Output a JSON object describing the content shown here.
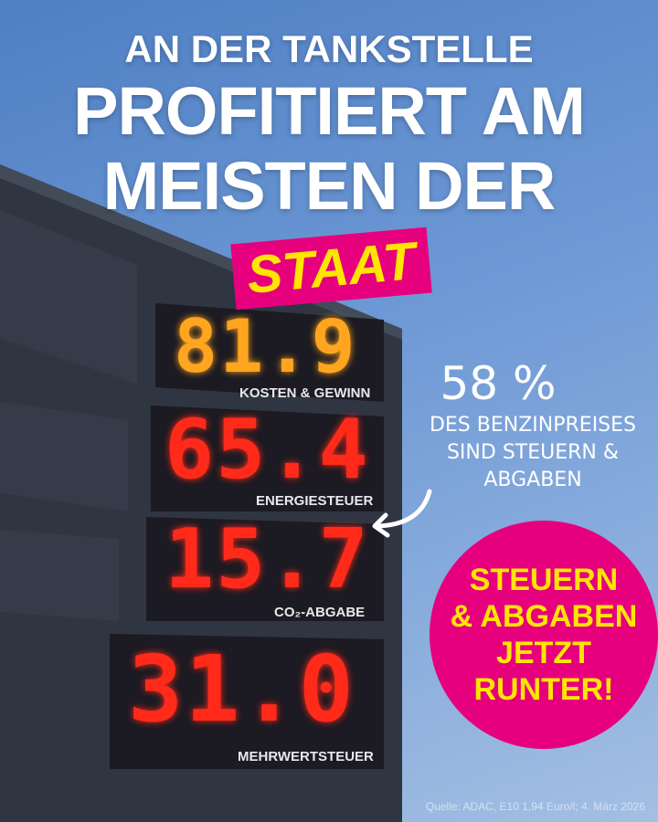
{
  "headline": {
    "line1": "AN DER TANKSTELLE",
    "line2": "PROFITIERT AM",
    "line3": "MEISTEN DER",
    "highlight": "STAAT"
  },
  "sign": [
    {
      "value": "81.9",
      "label": "KOSTEN & GEWINN",
      "color": "#ffa51f"
    },
    {
      "value": "65.4",
      "label": "ENERGIESTEUER",
      "color": "#ff2a1a"
    },
    {
      "value": "15.7",
      "label": "CO₂-ABGABE",
      "color": "#ff2a1a"
    },
    {
      "value": "31.0",
      "label": "MEHRWERTSTEUER",
      "color": "#ff2a1a"
    }
  ],
  "callout": {
    "percent": "58 %",
    "line1": "DES BENZINPREISES",
    "line2": "SIND STEUERN &",
    "line3": "ABGABEN"
  },
  "badge": {
    "line1": "STEUERN",
    "line2": "& ABGABEN",
    "line3": "JETZT",
    "line4": "RUNTER!"
  },
  "source": "Quelle: ADAC, E10 1,94 Euro/l; 4. März 2026",
  "colors": {
    "pink": "#e6007e",
    "yellow": "#ffe600",
    "sky": "#6f9ad6",
    "building": "#2f3541"
  }
}
